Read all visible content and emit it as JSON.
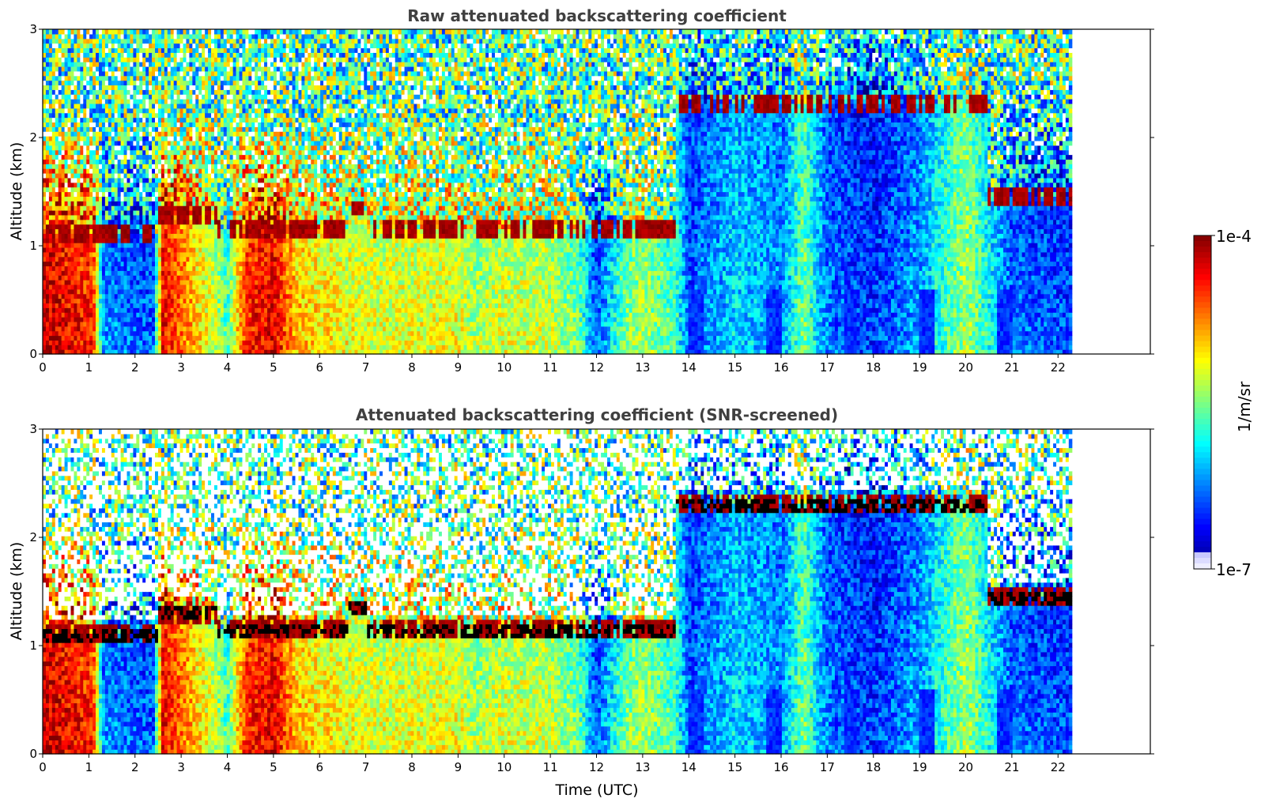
{
  "figure": {
    "panels": [
      {
        "title": "Raw attenuated backscattering coefficient",
        "ylabel": "Altitude (km)",
        "xlabel": ""
      },
      {
        "title": "Attenuated backscattering coefficient (SNR-screened)",
        "ylabel": "Altitude (km)",
        "xlabel": "Time (UTC)"
      }
    ],
    "colorbar": {
      "label": "1/m/sr",
      "max_label": "1e-4",
      "min_label": "1e-7"
    }
  },
  "chart_data": [
    {
      "type": "heatmap",
      "title": "Raw attenuated backscattering coefficient",
      "xlabel": "",
      "ylabel": "Altitude (km)",
      "xlim": [
        0,
        24
      ],
      "ylim": [
        0,
        3
      ],
      "data_xlim": [
        0,
        22.3
      ],
      "x_ticks": [
        "0",
        "1",
        "2",
        "3",
        "4",
        "5",
        "6",
        "7",
        "8",
        "9",
        "10",
        "11",
        "12",
        "13",
        "14",
        "15",
        "16",
        "17",
        "18",
        "19",
        "20",
        "21",
        "22"
      ],
      "y_ticks": [
        "0",
        "1",
        "2",
        "3"
      ],
      "colorscale": "jet",
      "color_range": [
        "1e-7",
        "1e-4"
      ],
      "color_log_range": [
        -7,
        -4
      ],
      "colorbar_label": "1/m/sr",
      "screened": false
    },
    {
      "type": "heatmap",
      "title": "Attenuated backscattering coefficient (SNR-screened)",
      "xlabel": "Time (UTC)",
      "ylabel": "Altitude (km)",
      "xlim": [
        0,
        24
      ],
      "ylim": [
        0,
        3
      ],
      "data_xlim": [
        0,
        22.3
      ],
      "x_ticks": [
        "0",
        "1",
        "2",
        "3",
        "4",
        "5",
        "6",
        "7",
        "8",
        "9",
        "10",
        "11",
        "12",
        "13",
        "14",
        "15",
        "16",
        "17",
        "18",
        "19",
        "20",
        "21",
        "22"
      ],
      "y_ticks": [
        "0",
        "1",
        "2",
        "3"
      ],
      "colorscale": "jet",
      "color_range": [
        "1e-7",
        "1e-4"
      ],
      "color_log_range": [
        -7,
        -4
      ],
      "colorbar_label": "1/m/sr",
      "screened": true
    }
  ]
}
